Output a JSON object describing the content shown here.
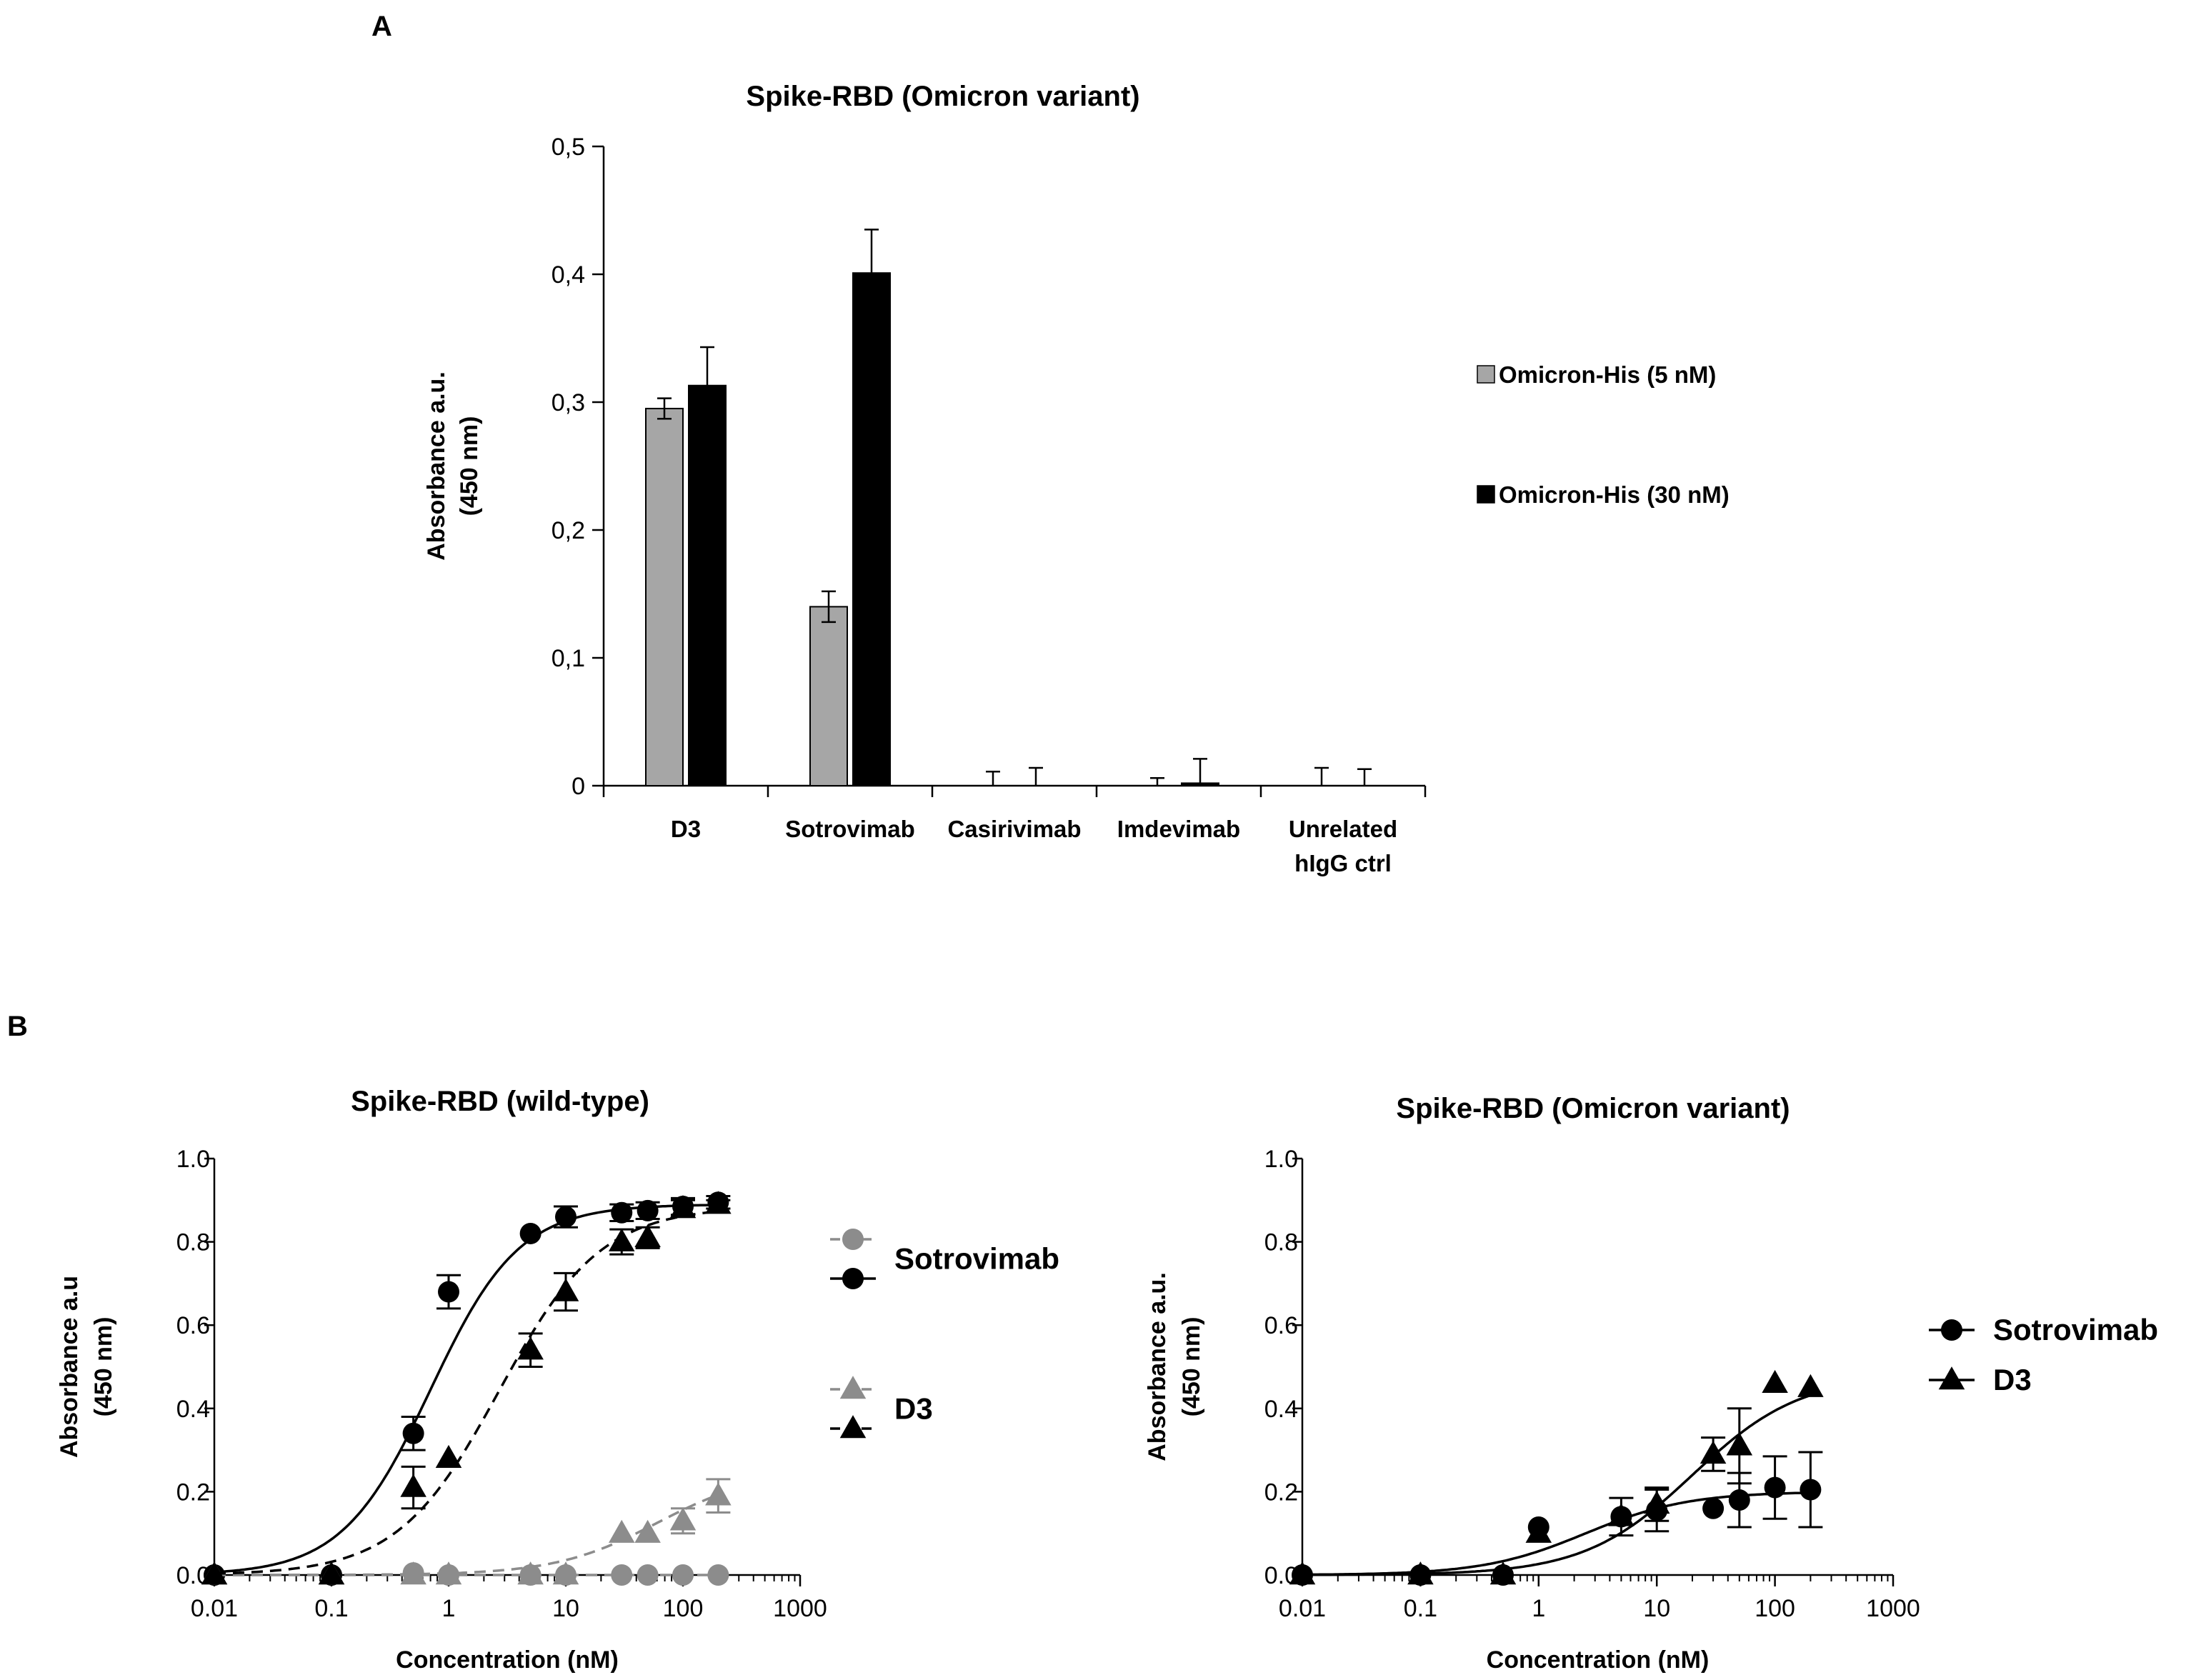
{
  "panel_labels": {
    "a": "A",
    "b": "B"
  },
  "colors": {
    "grey": "#a6a6a6",
    "black": "#000000",
    "grey_marker": "#8c8c8c"
  },
  "chart_data": [
    {
      "id": "A",
      "type": "bar",
      "title": "Spike-RBD (Omicron variant)",
      "xlabel": "",
      "ylabel": "Absorbance a.u.",
      "ylabel2": "(450 nm)",
      "ylim": [
        0,
        0.5
      ],
      "yticks": [
        0,
        0.1,
        0.2,
        0.3,
        0.4,
        0.5
      ],
      "ytick_labels": [
        "0",
        "0,1",
        "0,2",
        "0,3",
        "0,4",
        "0,5"
      ],
      "categories": [
        "D3",
        "Sotrovimab",
        "Casirivimab",
        "Imdevimab",
        "Unrelated hIgG ctrl"
      ],
      "category_lines": [
        [
          "D3"
        ],
        [
          "Sotrovimab"
        ],
        [
          "Casirivimab"
        ],
        [
          "Imdevimab"
        ],
        [
          "Unrelated",
          "hIgG ctrl"
        ]
      ],
      "series": [
        {
          "name": "Omicron-His (5 nM)",
          "color": "#a6a6a6",
          "values": [
            0.295,
            0.14,
            0.0,
            0.0,
            0.0
          ],
          "errors": [
            0.008,
            0.012,
            0.011,
            0.006,
            0.014
          ]
        },
        {
          "name": "Omicron-His (30 nM)",
          "color": "#000000",
          "values": [
            0.313,
            0.401,
            0.0,
            0.002,
            0.0
          ],
          "errors": [
            0.03,
            0.034,
            0.014,
            0.019,
            0.013
          ]
        }
      ],
      "legend": [
        "Omicron-His (5 nM)",
        "Omicron-His (30 nM)"
      ]
    },
    {
      "id": "B-left",
      "type": "scatter",
      "title": "Spike-RBD (wild-type)",
      "xlabel": "Concentration (nM)",
      "ylabel": "Absorbance a.u",
      "ylabel2": "(450 nm)",
      "xscale": "log",
      "xlim": [
        0.01,
        1000
      ],
      "ylim": [
        0,
        1.0
      ],
      "xtick_labels": [
        "0.01",
        "0.1",
        "1",
        "10",
        "100",
        "1000"
      ],
      "ytick_labels": [
        "0.0",
        "0.2",
        "0.4",
        "0.6",
        "0.8",
        "1.0"
      ],
      "legend": [
        {
          "label": "Sotrovimab",
          "entries": [
            "Sotrovimab (grey)",
            "Sotrovimab (black)"
          ]
        },
        {
          "label": "D3",
          "entries": [
            "D3 (grey)",
            "D3 (black)"
          ]
        }
      ],
      "series": [
        {
          "name": "Sotrovimab (grey)",
          "marker": "circle",
          "color": "#8c8c8c",
          "line": "dashed",
          "x": [
            0.01,
            0.1,
            0.5,
            1,
            5,
            10,
            30,
            50,
            100,
            200
          ],
          "y": [
            0.0,
            0.0,
            0.005,
            0.0,
            0.0,
            0.0,
            0.0,
            0.0,
            0.0,
            0.0
          ],
          "err": [
            0,
            0,
            0,
            0,
            0,
            0,
            0,
            0,
            0,
            0
          ],
          "fit": {
            "top": 0.0,
            "ec50": 1,
            "hill": 1
          }
        },
        {
          "name": "Sotrovimab (black)",
          "marker": "circle",
          "color": "#000000",
          "line": "solid",
          "x": [
            0.01,
            0.1,
            0.5,
            1,
            5,
            10,
            30,
            50,
            100,
            200
          ],
          "y": [
            0.0,
            0.0,
            0.34,
            0.68,
            0.82,
            0.86,
            0.87,
            0.875,
            0.885,
            0.895
          ],
          "err": [
            0,
            0,
            0.04,
            0.04,
            0,
            0.025,
            0.02,
            0.02,
            0.02,
            0.015
          ],
          "fit": {
            "top": 0.89,
            "ec50": 0.7,
            "hill": 1.15
          }
        },
        {
          "name": "D3 (grey)",
          "marker": "triangle",
          "color": "#8c8c8c",
          "line": "dashed",
          "x": [
            0.01,
            0.1,
            0.5,
            1,
            5,
            10,
            30,
            50,
            100,
            200
          ],
          "y": [
            0.0,
            0.0,
            0.0,
            0.0,
            0.0,
            0.0,
            0.1,
            0.1,
            0.13,
            0.19
          ],
          "err": [
            0,
            0,
            0,
            0,
            0,
            0,
            0,
            0,
            0.03,
            0.04
          ],
          "fit": {
            "top": 0.25,
            "ec50": 60,
            "hill": 1.0
          }
        },
        {
          "name": "D3 (black)",
          "marker": "triangle",
          "color": "#000000",
          "line": "dashed",
          "x": [
            0.01,
            0.1,
            0.5,
            1,
            5,
            10,
            30,
            50,
            100,
            200
          ],
          "y": [
            0.0,
            0.0,
            0.21,
            0.28,
            0.54,
            0.68,
            0.8,
            0.81,
            0.88,
            0.89
          ],
          "err": [
            0,
            0,
            0.05,
            0,
            0.04,
            0.045,
            0.03,
            0.025,
            0.02,
            0.01
          ],
          "fit": {
            "top": 0.885,
            "ec50": 2.7,
            "hill": 1.0
          }
        }
      ]
    },
    {
      "id": "B-right",
      "type": "scatter",
      "title": "Spike-RBD (Omicron variant)",
      "xlabel": "Concentration (nM)",
      "ylabel": "Absorbance a.u.",
      "ylabel2": "(450 nm)",
      "xscale": "log",
      "xlim": [
        0.01,
        1000
      ],
      "ylim": [
        0,
        1.0
      ],
      "xtick_labels": [
        "0.01",
        "0.1",
        "1",
        "10",
        "100",
        "1000"
      ],
      "ytick_labels": [
        "0.0",
        "0.2",
        "0.4",
        "0.6",
        "0.8",
        "1.0"
      ],
      "legend": [
        {
          "label": "Sotrovimab",
          "entries": [
            "Sotrovimab"
          ]
        },
        {
          "label": "D3",
          "entries": [
            "D3"
          ]
        }
      ],
      "series": [
        {
          "name": "Sotrovimab",
          "marker": "circle",
          "color": "#000000",
          "line": "solid",
          "x": [
            0.01,
            0.1,
            0.5,
            1,
            5,
            10,
            30,
            50,
            100,
            200
          ],
          "y": [
            0.0,
            0.0,
            0.0,
            0.115,
            0.14,
            0.155,
            0.16,
            0.18,
            0.21,
            0.205
          ],
          "err": [
            0,
            0,
            0,
            0,
            0.045,
            0.05,
            0,
            0.065,
            0.075,
            0.09
          ],
          "fit": {
            "top": 0.2,
            "ec50": 2.5,
            "hill": 1.0
          }
        },
        {
          "name": "D3",
          "marker": "triangle",
          "color": "#000000",
          "line": "solid",
          "x": [
            0.01,
            0.1,
            0.5,
            1,
            5,
            10,
            30,
            50,
            100,
            200
          ],
          "y": [
            0.0,
            0.0,
            0.0,
            0.1,
            0.14,
            0.17,
            0.29,
            0.31,
            0.46,
            0.45
          ],
          "err": [
            0,
            0,
            0,
            0,
            0,
            0.04,
            0.04,
            0.09,
            0,
            0
          ],
          "fit": {
            "top": 0.48,
            "ec50": 20,
            "hill": 0.95
          }
        }
      ]
    }
  ]
}
